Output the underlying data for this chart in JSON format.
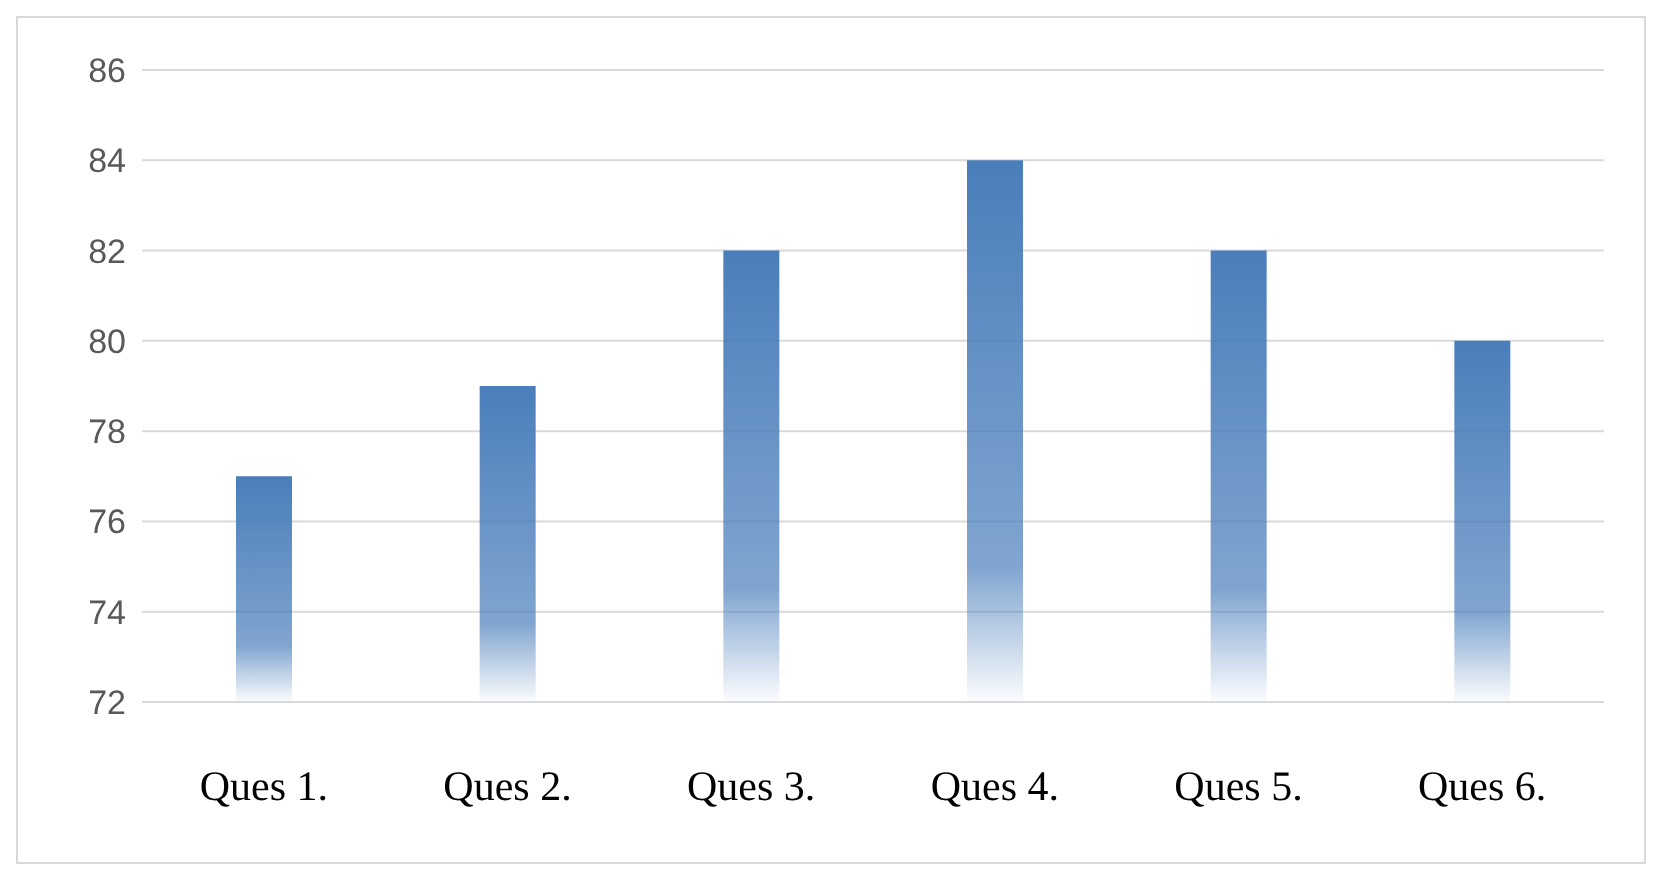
{
  "chart_data": {
    "type": "bar",
    "categories": [
      "Ques 1.",
      "Ques 2.",
      "Ques 3.",
      "Ques 4.",
      "Ques 5.",
      "Ques 6."
    ],
    "values": [
      77,
      79,
      82,
      84,
      82,
      80
    ],
    "color": "#4a7ebb",
    "ylim": [
      72,
      86
    ],
    "yticks": [
      72,
      74,
      76,
      78,
      80,
      82,
      84,
      86
    ],
    "grid": "y"
  }
}
